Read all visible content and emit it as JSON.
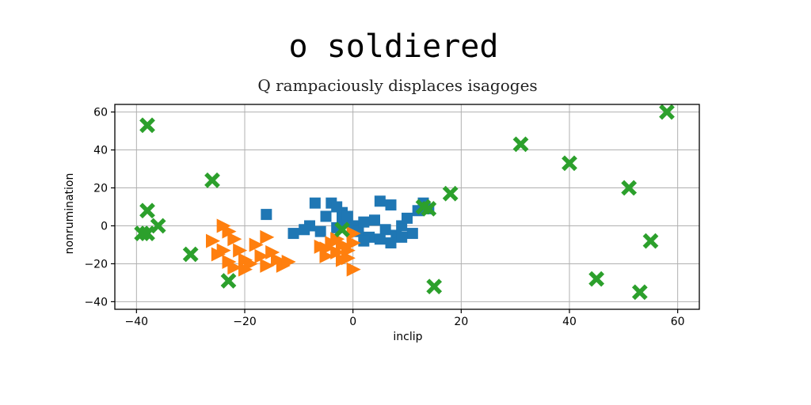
{
  "chart_data": {
    "type": "scatter",
    "title": "o soldiered",
    "subtitle": "Q rampaciously displaces isagoges",
    "xlabel": "inclip",
    "ylabel": "nonrumination",
    "xlim": [
      -44,
      64
    ],
    "ylim": [
      -44,
      64
    ],
    "xticks": [
      -40,
      -20,
      0,
      20,
      40,
      60
    ],
    "yticks": [
      -40,
      -20,
      0,
      20,
      40,
      60
    ],
    "grid": true,
    "legend": "none",
    "series": [
      {
        "marker": "square",
        "color": "#1f77b4",
        "points": [
          [
            -16,
            6
          ],
          [
            -11,
            -4
          ],
          [
            -8,
            0
          ],
          [
            -7,
            12
          ],
          [
            -5,
            5
          ],
          [
            -4,
            12
          ],
          [
            -3,
            10
          ],
          [
            -2,
            7
          ],
          [
            -2,
            2
          ],
          [
            -1,
            5
          ],
          [
            0,
            0
          ],
          [
            1,
            -3
          ],
          [
            2,
            2
          ],
          [
            3,
            -6
          ],
          [
            4,
            3
          ],
          [
            5,
            13
          ],
          [
            6,
            -2
          ],
          [
            7,
            11
          ],
          [
            8,
            -5
          ],
          [
            9,
            0
          ],
          [
            10,
            4
          ],
          [
            11,
            -4
          ],
          [
            12,
            8
          ],
          [
            13,
            12
          ],
          [
            14,
            9
          ],
          [
            -6,
            -3
          ],
          [
            -3,
            -1
          ],
          [
            2,
            -8
          ],
          [
            5,
            -7
          ],
          [
            7,
            -9
          ],
          [
            9,
            -6
          ],
          [
            -9,
            -2
          ]
        ]
      },
      {
        "marker": "triangle-right",
        "color": "#ff7f0e",
        "points": [
          [
            -24,
            0
          ],
          [
            -23,
            -3
          ],
          [
            -26,
            -8
          ],
          [
            -25,
            -15
          ],
          [
            -24,
            -13
          ],
          [
            -23,
            -19
          ],
          [
            -21,
            -13
          ],
          [
            -22,
            -22
          ],
          [
            -20,
            -18
          ],
          [
            -19,
            -20
          ],
          [
            -18,
            -10
          ],
          [
            -17,
            -16
          ],
          [
            -16,
            -21
          ],
          [
            -15,
            -14
          ],
          [
            -14,
            -18
          ],
          [
            -13,
            -21
          ],
          [
            -12,
            -19
          ],
          [
            -16,
            -6
          ],
          [
            -22,
            -7
          ],
          [
            -20,
            -23
          ],
          [
            -5,
            -12
          ],
          [
            -4,
            -9
          ],
          [
            -3,
            -14
          ],
          [
            -2,
            -10
          ],
          [
            -1,
            -13
          ],
          [
            0,
            -9
          ],
          [
            0,
            -4
          ],
          [
            -1,
            -17
          ],
          [
            -5,
            -16
          ],
          [
            -3,
            -7
          ],
          [
            0,
            -23
          ],
          [
            -6,
            -11
          ],
          [
            -2,
            -18
          ]
        ]
      },
      {
        "marker": "x",
        "color": "#2ca02c",
        "points": [
          [
            -38,
            53
          ],
          [
            -38,
            8
          ],
          [
            -39,
            -4
          ],
          [
            -38,
            -4
          ],
          [
            -36,
            0
          ],
          [
            -30,
            -15
          ],
          [
            -26,
            24
          ],
          [
            -23,
            -29
          ],
          [
            -2,
            -2
          ],
          [
            13,
            10
          ],
          [
            14,
            9
          ],
          [
            15,
            -32
          ],
          [
            18,
            17
          ],
          [
            31,
            43
          ],
          [
            40,
            33
          ],
          [
            45,
            -28
          ],
          [
            51,
            20
          ],
          [
            53,
            -35
          ],
          [
            55,
            -8
          ],
          [
            58,
            60
          ]
        ]
      }
    ]
  }
}
